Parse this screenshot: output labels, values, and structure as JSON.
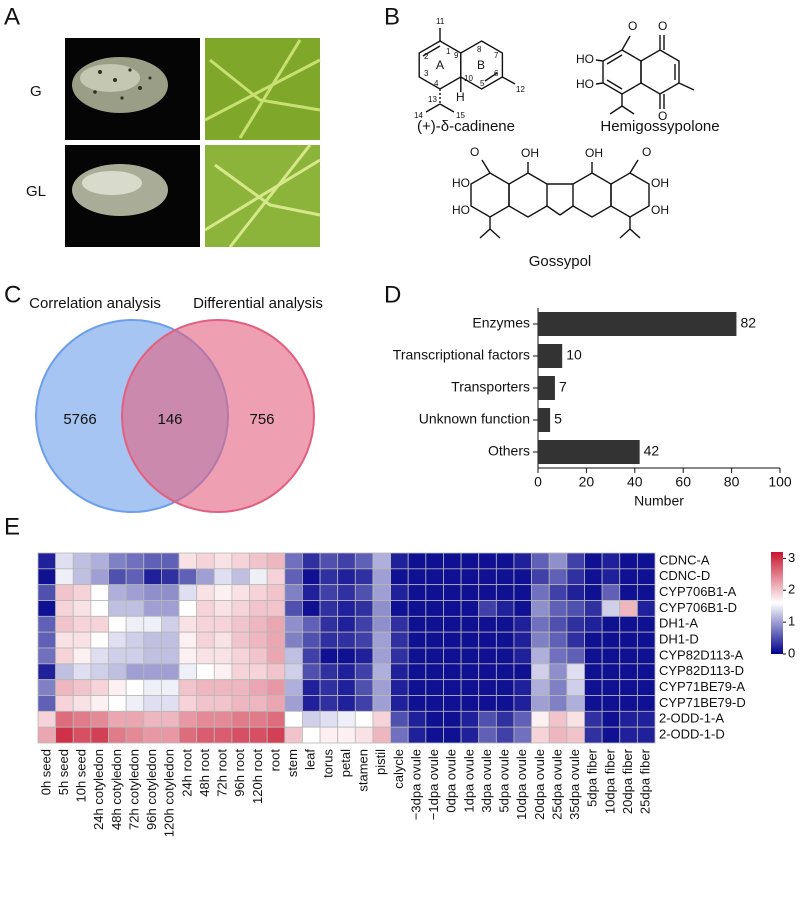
{
  "panel_labels": [
    "A",
    "B",
    "C",
    "D",
    "E"
  ],
  "photos": {
    "row_labels": [
      "G",
      "GL"
    ]
  },
  "structures": [
    {
      "name": "(+)-δ-cadinene",
      "labels": [
        "11",
        "2",
        "1",
        "3",
        "A",
        "4",
        "9",
        "8",
        "B",
        "10",
        "7",
        "6",
        "5",
        "12",
        "13",
        "14",
        "15",
        "H"
      ]
    },
    {
      "name": "Hemigossypolone",
      "labels": [
        "O",
        "O",
        "HO",
        "HO",
        "O"
      ]
    },
    {
      "name": "Gossypol",
      "labels": [
        "O",
        "OH",
        "OH",
        "O",
        "HO",
        "OH",
        "HO",
        "OH"
      ]
    }
  ],
  "chart_data": [
    {
      "type": "venn",
      "set_labels": [
        "Correlation analysis",
        "Differential analysis"
      ],
      "values": [
        5766,
        146,
        756
      ],
      "colors": [
        "#6d9eeb",
        "#e2607f"
      ]
    },
    {
      "type": "bar",
      "orientation": "horizontal",
      "categories": [
        "Enzymes",
        "Transcriptional factors",
        "Transporters",
        "Unknown function",
        "Others"
      ],
      "values": [
        82,
        10,
        7,
        5,
        42
      ],
      "color": "#333333",
      "xlim": [
        0,
        100
      ],
      "xticks": [
        0,
        20,
        40,
        60,
        80,
        100
      ],
      "xlabel": "Number"
    },
    {
      "type": "heatmap",
      "rows": [
        "CDNC-A",
        "CDNC-D",
        "CYP706B1-A",
        "CYP706B1-D",
        "DH1-A",
        "DH1-D",
        "CYP82D113-A",
        "CYP82D113-D",
        "CYP71BE79-A",
        "CYP71BE79-D",
        "2-ODD-1-A",
        "2-ODD-1-D"
      ],
      "columns": [
        "0h seed",
        "5h seed",
        "10h seed",
        "24h cotyledon",
        "48h cotyledon",
        "72h cotyledon",
        "96h cotyledon",
        "120h cotyledon",
        "24h root",
        "48h root",
        "72h root",
        "96h root",
        "120h root",
        "root",
        "stem",
        "leaf",
        "torus",
        "petal",
        "stamen",
        "pistil",
        "calycle",
        "−3dpa ovule",
        "−1dpa ovule",
        "0dpa ovule",
        "1dpa ovule",
        "3dpa ovule",
        "5dpa ovule",
        "10dpa ovule",
        "20dpa ovule",
        "25dpa ovule",
        "35dpa ovule",
        "5dpa fiber",
        "10dpa fiber",
        "20dpa fiber",
        "25dpa fiber"
      ],
      "values": [
        [
          0.2,
          1.4,
          1.2,
          1.1,
          0.8,
          0.7,
          0.6,
          0.6,
          1.8,
          1.9,
          1.8,
          1.9,
          2.0,
          2.1,
          0.7,
          0.3,
          0.5,
          0.4,
          0.6,
          1.1,
          0.2,
          0.1,
          0.1,
          0.1,
          0.1,
          0.1,
          0.1,
          0.2,
          0.6,
          0.9,
          0.4,
          0.1,
          0.2,
          0.1,
          0.1
        ],
        [
          0.1,
          1.5,
          1.2,
          1.0,
          0.5,
          0.6,
          0.2,
          0.3,
          0.6,
          1.0,
          1.4,
          1.2,
          1.5,
          1.9,
          0.6,
          0.1,
          0.3,
          0.2,
          0.3,
          1.0,
          0.1,
          0.1,
          0.1,
          0.1,
          0.1,
          0.1,
          0.1,
          0.1,
          0.4,
          0.6,
          0.3,
          0.1,
          0.2,
          0.1,
          0.1
        ],
        [
          0.5,
          2.0,
          1.9,
          1.6,
          1.1,
          1.0,
          0.9,
          0.9,
          1.4,
          1.8,
          1.7,
          1.8,
          1.9,
          2.0,
          0.8,
          0.2,
          0.4,
          0.3,
          0.5,
          1.0,
          0.2,
          0.1,
          0.1,
          0.1,
          0.1,
          0.1,
          0.1,
          0.1,
          0.7,
          0.4,
          0.2,
          0.1,
          0.6,
          0.1,
          0.1
        ],
        [
          0.1,
          1.9,
          1.8,
          1.6,
          1.2,
          1.2,
          1.0,
          1.0,
          1.6,
          1.9,
          1.8,
          1.9,
          2.0,
          2.0,
          0.5,
          0.1,
          0.3,
          0.2,
          0.3,
          0.9,
          0.1,
          0.1,
          0.1,
          0.1,
          0.1,
          0.4,
          0.2,
          0.1,
          0.9,
          0.6,
          0.5,
          0.3,
          1.3,
          2.1,
          0.2
        ],
        [
          0.6,
          2.0,
          1.9,
          1.9,
          1.6,
          1.5,
          1.5,
          1.3,
          1.8,
          1.9,
          1.9,
          2.0,
          2.1,
          2.2,
          0.9,
          0.6,
          0.3,
          0.2,
          0.4,
          0.9,
          0.3,
          0.1,
          0.1,
          0.1,
          0.1,
          0.1,
          0.1,
          0.2,
          0.7,
          0.5,
          0.3,
          0.2,
          0.1,
          0.1,
          0.1
        ],
        [
          0.6,
          1.8,
          1.8,
          1.6,
          1.4,
          1.3,
          1.2,
          1.2,
          1.7,
          1.9,
          1.8,
          2.0,
          2.1,
          2.2,
          0.8,
          0.5,
          0.3,
          0.3,
          0.4,
          1.0,
          0.3,
          0.1,
          0.1,
          0.1,
          0.1,
          0.1,
          0.1,
          0.2,
          0.8,
          0.6,
          0.3,
          0.1,
          0.1,
          0.1,
          0.1
        ],
        [
          0.7,
          1.9,
          1.7,
          1.4,
          1.3,
          1.3,
          1.2,
          1.2,
          1.7,
          1.8,
          1.8,
          1.9,
          2.0,
          2.2,
          1.2,
          0.4,
          0.1,
          0.1,
          0.2,
          1.0,
          0.3,
          0.1,
          0.1,
          0.1,
          0.1,
          0.1,
          0.1,
          0.2,
          1.1,
          0.7,
          0.6,
          0.1,
          0.1,
          0.1,
          0.1
        ],
        [
          0.2,
          1.2,
          1.4,
          1.3,
          1.2,
          1.0,
          1.0,
          1.0,
          1.5,
          1.6,
          1.7,
          1.9,
          1.9,
          2.0,
          1.3,
          0.5,
          0.3,
          0.2,
          0.4,
          1.1,
          0.2,
          0.1,
          0.1,
          0.1,
          0.1,
          0.1,
          0.1,
          0.1,
          1.3,
          0.9,
          1.4,
          0.1,
          0.1,
          0.1,
          0.1
        ],
        [
          0.8,
          2.1,
          2.0,
          1.9,
          1.7,
          1.6,
          1.5,
          1.5,
          2.0,
          2.1,
          2.1,
          2.1,
          2.2,
          2.3,
          1.1,
          0.2,
          0.3,
          0.2,
          0.5,
          1.0,
          0.2,
          0.1,
          0.1,
          0.1,
          0.1,
          0.1,
          0.1,
          0.2,
          1.1,
          0.8,
          1.3,
          0.1,
          0.1,
          0.1,
          0.1
        ],
        [
          0.6,
          1.9,
          1.8,
          1.7,
          1.6,
          1.5,
          1.4,
          1.4,
          1.9,
          2.0,
          2.0,
          2.1,
          2.1,
          2.2,
          1.0,
          0.2,
          0.3,
          0.2,
          0.4,
          1.0,
          0.2,
          0.1,
          0.1,
          0.1,
          0.1,
          0.1,
          0.1,
          0.2,
          1.0,
          0.8,
          1.1,
          0.1,
          0.1,
          0.1,
          0.1
        ],
        [
          1.9,
          2.6,
          2.5,
          2.4,
          2.2,
          2.2,
          2.1,
          2.1,
          2.3,
          2.4,
          2.4,
          2.5,
          2.5,
          2.6,
          1.6,
          1.3,
          1.4,
          1.5,
          1.6,
          1.9,
          0.5,
          0.2,
          0.1,
          0.1,
          0.2,
          0.5,
          0.3,
          0.6,
          1.7,
          2.0,
          1.8,
          0.3,
          0.1,
          0.2,
          0.2
        ],
        [
          2.2,
          3.0,
          2.8,
          2.9,
          2.5,
          2.4,
          2.3,
          2.3,
          2.6,
          2.7,
          2.7,
          2.8,
          2.8,
          2.9,
          2.0,
          1.6,
          1.7,
          1.7,
          1.8,
          2.1,
          0.7,
          0.2,
          0.1,
          0.1,
          0.2,
          0.6,
          0.4,
          0.7,
          1.9,
          2.1,
          2.0,
          0.3,
          0.1,
          0.2,
          0.2
        ]
      ],
      "clim": [
        0,
        3.2
      ],
      "colors": [
        "#00008b",
        "#ffffff",
        "#c8142e"
      ],
      "colorbar_ticks": [
        0,
        1,
        2,
        3
      ]
    }
  ]
}
